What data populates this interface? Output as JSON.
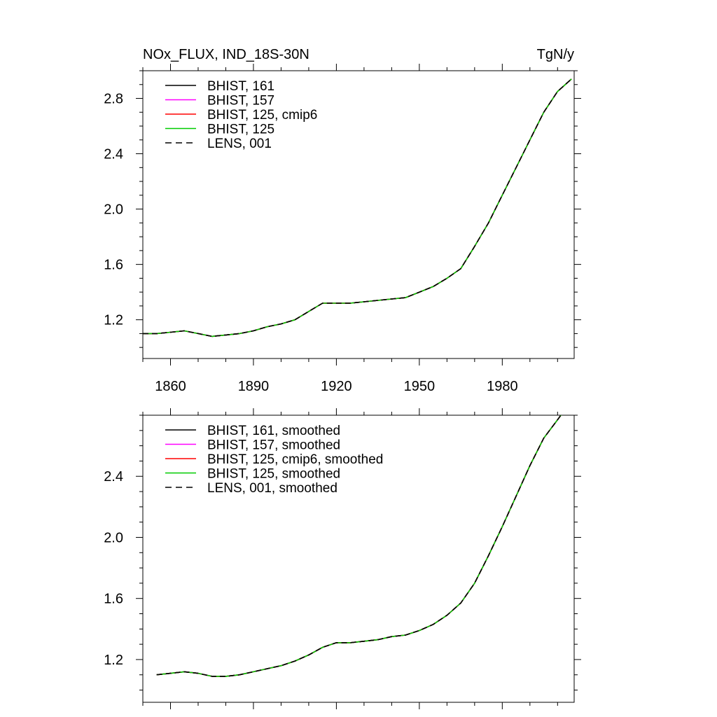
{
  "chart_data": [
    {
      "type": "line",
      "title": "NOx_FLUX, IND_18S-30N",
      "units": "TgN/y",
      "xlim": [
        1850,
        2006
      ],
      "ylim": [
        0.92,
        3.0
      ],
      "x_ticks": [
        1860,
        1890,
        1920,
        1950,
        1980
      ],
      "x_tick_labels": [
        "1860",
        "1890",
        "1920",
        "1950",
        "1980"
      ],
      "y_ticks": [
        1.2,
        1.6,
        2.0,
        2.4,
        2.8
      ],
      "y_tick_labels": [
        "1.2",
        "1.6",
        "2.0",
        "2.4",
        "2.8"
      ],
      "legend_position": "top-left",
      "series": [
        {
          "name": "BHIST, 161",
          "color": "#000000",
          "dash": "solid",
          "x": [
            1850,
            1855,
            1860,
            1865,
            1870,
            1875,
            1880,
            1885,
            1890,
            1895,
            1900,
            1905,
            1910,
            1915,
            1920,
            1925,
            1930,
            1935,
            1940,
            1945,
            1950,
            1955,
            1960,
            1965,
            1970,
            1975,
            1980,
            1985,
            1990,
            1995,
            2000,
            2005
          ],
          "y": [
            1.1,
            1.1,
            1.11,
            1.12,
            1.1,
            1.08,
            1.09,
            1.1,
            1.12,
            1.15,
            1.17,
            1.2,
            1.26,
            1.32,
            1.32,
            1.32,
            1.33,
            1.34,
            1.35,
            1.36,
            1.4,
            1.44,
            1.5,
            1.57,
            1.73,
            1.9,
            2.1,
            2.3,
            2.5,
            2.7,
            2.85,
            2.94
          ]
        },
        {
          "name": "BHIST, 157",
          "color": "#ff00ff",
          "dash": "solid",
          "x": [
            1850,
            1855,
            1860,
            1865,
            1870,
            1875,
            1880,
            1885,
            1890,
            1895,
            1900,
            1905,
            1910,
            1915,
            1920,
            1925,
            1930,
            1935,
            1940,
            1945,
            1950,
            1955,
            1960,
            1965,
            1970,
            1975,
            1980,
            1985,
            1990,
            1995,
            2000,
            2005
          ],
          "y": [
            1.1,
            1.1,
            1.11,
            1.12,
            1.1,
            1.08,
            1.09,
            1.1,
            1.12,
            1.15,
            1.17,
            1.2,
            1.26,
            1.32,
            1.32,
            1.32,
            1.33,
            1.34,
            1.35,
            1.36,
            1.4,
            1.44,
            1.5,
            1.57,
            1.73,
            1.9,
            2.1,
            2.3,
            2.5,
            2.7,
            2.85,
            2.94
          ]
        },
        {
          "name": "BHIST, 125, cmip6",
          "color": "#ff0000",
          "dash": "solid",
          "x": [
            1850,
            1855,
            1860,
            1865,
            1870,
            1875,
            1880,
            1885,
            1890,
            1895,
            1900,
            1905,
            1910,
            1915,
            1920,
            1925,
            1930,
            1935,
            1940,
            1945,
            1950,
            1955,
            1960,
            1965,
            1970,
            1975,
            1980,
            1985,
            1990,
            1995,
            2000,
            2005
          ],
          "y": [
            1.1,
            1.1,
            1.11,
            1.12,
            1.1,
            1.08,
            1.09,
            1.1,
            1.12,
            1.15,
            1.17,
            1.2,
            1.26,
            1.32,
            1.32,
            1.32,
            1.33,
            1.34,
            1.35,
            1.36,
            1.4,
            1.44,
            1.5,
            1.57,
            1.73,
            1.9,
            2.1,
            2.3,
            2.5,
            2.7,
            2.85,
            2.94
          ]
        },
        {
          "name": "BHIST, 125",
          "color": "#00cc00",
          "dash": "solid",
          "x": [
            1850,
            1855,
            1860,
            1865,
            1870,
            1875,
            1880,
            1885,
            1890,
            1895,
            1900,
            1905,
            1910,
            1915,
            1920,
            1925,
            1930,
            1935,
            1940,
            1945,
            1950,
            1955,
            1960,
            1965,
            1970,
            1975,
            1980,
            1985,
            1990,
            1995,
            2000,
            2005
          ],
          "y": [
            1.1,
            1.1,
            1.11,
            1.12,
            1.1,
            1.08,
            1.09,
            1.1,
            1.12,
            1.15,
            1.17,
            1.2,
            1.26,
            1.32,
            1.32,
            1.32,
            1.33,
            1.34,
            1.35,
            1.36,
            1.4,
            1.44,
            1.5,
            1.57,
            1.73,
            1.9,
            2.1,
            2.3,
            2.5,
            2.7,
            2.85,
            2.94
          ]
        },
        {
          "name": "LENS, 001",
          "color": "#000000",
          "dash": "dashed",
          "x": [
            1850,
            1855,
            1860,
            1865,
            1870,
            1875,
            1880,
            1885,
            1890,
            1895,
            1900,
            1905,
            1910,
            1915,
            1920,
            1925,
            1930,
            1935,
            1940,
            1945,
            1950,
            1955,
            1960,
            1965,
            1970,
            1975,
            1980,
            1985,
            1990,
            1995,
            2000,
            2005
          ],
          "y": [
            1.1,
            1.1,
            1.11,
            1.12,
            1.1,
            1.08,
            1.09,
            1.1,
            1.12,
            1.15,
            1.17,
            1.2,
            1.26,
            1.32,
            1.32,
            1.32,
            1.33,
            1.34,
            1.35,
            1.36,
            1.4,
            1.44,
            1.5,
            1.57,
            1.73,
            1.9,
            2.1,
            2.3,
            2.5,
            2.7,
            2.85,
            2.94
          ]
        }
      ]
    },
    {
      "type": "line",
      "title": "",
      "units": "",
      "xlim": [
        1850,
        2006
      ],
      "ylim": [
        0.92,
        2.8
      ],
      "x_ticks": [
        1860,
        1890,
        1920,
        1950,
        1980
      ],
      "x_tick_labels": [],
      "y_ticks": [
        1.2,
        1.6,
        2.0,
        2.4
      ],
      "y_tick_labels": [
        "1.2",
        "1.6",
        "2.0",
        "2.4"
      ],
      "legend_position": "top-left",
      "series": [
        {
          "name": "BHIST, 161, smoothed",
          "color": "#000000",
          "dash": "solid",
          "x": [
            1855,
            1860,
            1865,
            1870,
            1875,
            1880,
            1885,
            1890,
            1895,
            1900,
            1905,
            1910,
            1915,
            1920,
            1925,
            1930,
            1935,
            1940,
            1945,
            1950,
            1955,
            1960,
            1965,
            1970,
            1975,
            1980,
            1985,
            1990,
            1995,
            2000,
            2002
          ],
          "y": [
            1.1,
            1.11,
            1.12,
            1.11,
            1.09,
            1.09,
            1.1,
            1.12,
            1.14,
            1.16,
            1.19,
            1.23,
            1.28,
            1.31,
            1.31,
            1.32,
            1.33,
            1.35,
            1.36,
            1.39,
            1.43,
            1.49,
            1.57,
            1.7,
            1.88,
            2.07,
            2.27,
            2.47,
            2.65,
            2.77,
            2.82
          ]
        },
        {
          "name": "BHIST, 157, smoothed",
          "color": "#ff00ff",
          "dash": "solid",
          "x": [
            1855,
            1860,
            1865,
            1870,
            1875,
            1880,
            1885,
            1890,
            1895,
            1900,
            1905,
            1910,
            1915,
            1920,
            1925,
            1930,
            1935,
            1940,
            1945,
            1950,
            1955,
            1960,
            1965,
            1970,
            1975,
            1980,
            1985,
            1990,
            1995,
            2000,
            2002
          ],
          "y": [
            1.1,
            1.11,
            1.12,
            1.11,
            1.09,
            1.09,
            1.1,
            1.12,
            1.14,
            1.16,
            1.19,
            1.23,
            1.28,
            1.31,
            1.31,
            1.32,
            1.33,
            1.35,
            1.36,
            1.39,
            1.43,
            1.49,
            1.57,
            1.7,
            1.88,
            2.07,
            2.27,
            2.47,
            2.65,
            2.77,
            2.82
          ]
        },
        {
          "name": "BHIST, 125, cmip6, smoothed",
          "color": "#ff0000",
          "dash": "solid",
          "x": [
            1855,
            1860,
            1865,
            1870,
            1875,
            1880,
            1885,
            1890,
            1895,
            1900,
            1905,
            1910,
            1915,
            1920,
            1925,
            1930,
            1935,
            1940,
            1945,
            1950,
            1955,
            1960,
            1965,
            1970,
            1975,
            1980,
            1985,
            1990,
            1995,
            2000,
            2002
          ],
          "y": [
            1.1,
            1.11,
            1.12,
            1.11,
            1.09,
            1.09,
            1.1,
            1.12,
            1.14,
            1.16,
            1.19,
            1.23,
            1.28,
            1.31,
            1.31,
            1.32,
            1.33,
            1.35,
            1.36,
            1.39,
            1.43,
            1.49,
            1.57,
            1.7,
            1.88,
            2.07,
            2.27,
            2.47,
            2.65,
            2.77,
            2.82
          ]
        },
        {
          "name": "BHIST, 125, smoothed",
          "color": "#00cc00",
          "dash": "solid",
          "x": [
            1855,
            1860,
            1865,
            1870,
            1875,
            1880,
            1885,
            1890,
            1895,
            1900,
            1905,
            1910,
            1915,
            1920,
            1925,
            1930,
            1935,
            1940,
            1945,
            1950,
            1955,
            1960,
            1965,
            1970,
            1975,
            1980,
            1985,
            1990,
            1995,
            2000,
            2002
          ],
          "y": [
            1.1,
            1.11,
            1.12,
            1.11,
            1.09,
            1.09,
            1.1,
            1.12,
            1.14,
            1.16,
            1.19,
            1.23,
            1.28,
            1.31,
            1.31,
            1.32,
            1.33,
            1.35,
            1.36,
            1.39,
            1.43,
            1.49,
            1.57,
            1.7,
            1.88,
            2.07,
            2.27,
            2.47,
            2.65,
            2.77,
            2.82
          ]
        },
        {
          "name": "LENS, 001, smoothed",
          "color": "#000000",
          "dash": "dashed",
          "x": [
            1855,
            1860,
            1865,
            1870,
            1875,
            1880,
            1885,
            1890,
            1895,
            1900,
            1905,
            1910,
            1915,
            1920,
            1925,
            1930,
            1935,
            1940,
            1945,
            1950,
            1955,
            1960,
            1965,
            1970,
            1975,
            1980,
            1985,
            1990,
            1995,
            2000,
            2002
          ],
          "y": [
            1.1,
            1.11,
            1.12,
            1.11,
            1.09,
            1.09,
            1.1,
            1.12,
            1.14,
            1.16,
            1.19,
            1.23,
            1.28,
            1.31,
            1.31,
            1.32,
            1.33,
            1.35,
            1.36,
            1.39,
            1.43,
            1.49,
            1.57,
            1.7,
            1.88,
            2.07,
            2.27,
            2.47,
            2.65,
            2.77,
            2.82
          ]
        }
      ]
    }
  ]
}
